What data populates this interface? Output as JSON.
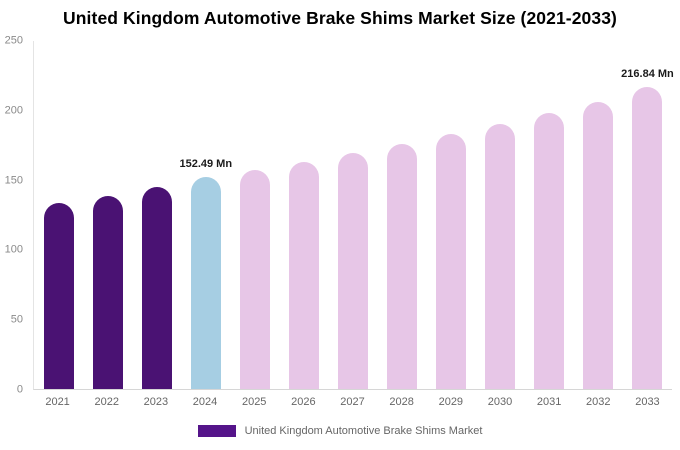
{
  "chart_data": {
    "type": "bar",
    "title": "United Kingdom Automotive Brake Shims Market Size (2021-2033)",
    "categories": [
      "2021",
      "2022",
      "2023",
      "2024",
      "2025",
      "2026",
      "2027",
      "2028",
      "2029",
      "2030",
      "2031",
      "2032",
      "2033"
    ],
    "values": [
      133.6,
      139.0,
      145.3,
      152.49,
      157.4,
      163.2,
      169.4,
      176.1,
      183.3,
      190.4,
      198.0,
      206.3,
      216.84
    ],
    "unit": "Mn",
    "xlabel": "",
    "ylabel": "",
    "ylim": [
      0,
      250
    ],
    "yticks": [
      0,
      50,
      100,
      150,
      200,
      250
    ],
    "grid": false,
    "bar_colors": [
      "#4a1273",
      "#4a1273",
      "#4a1273",
      "#a6cee3",
      "#e7c6e7",
      "#e7c6e7",
      "#e7c6e7",
      "#e7c6e7",
      "#e7c6e7",
      "#e7c6e7",
      "#e7c6e7",
      "#e7c6e7",
      "#e7c6e7"
    ],
    "annotations": [
      {
        "category": "2024",
        "text": "152.49 Mn"
      },
      {
        "category": "2033",
        "text": "216.84 Mn"
      }
    ],
    "legend": {
      "label": "United Kingdom Automotive Brake Shims Market",
      "swatch_color": "#55148a",
      "position": "bottom-center"
    },
    "colors": {
      "dark_purple": "#4a1273",
      "highlight_blue": "#a6cee3",
      "light_pink": "#e7c6e7",
      "axis_line": "#d6d6d6",
      "tick_text": "#8a8a8a",
      "background": "#ffffff"
    }
  }
}
